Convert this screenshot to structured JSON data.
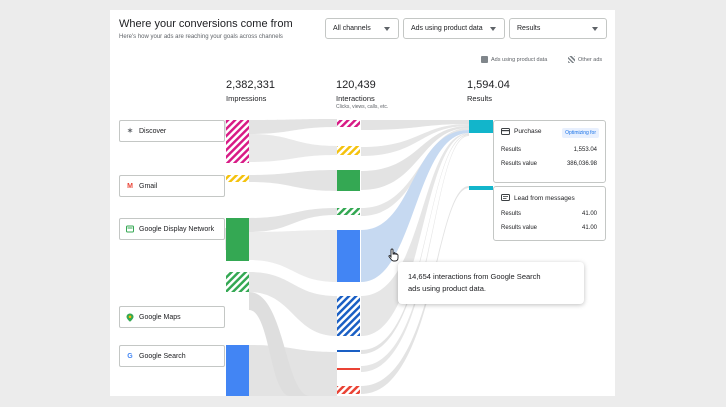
{
  "header": {
    "title": "Where your conversions come from",
    "subtitle": "Here's how your ads are reaching your goals across channels"
  },
  "filters": {
    "channels": "All channels",
    "ads": "Ads using product data",
    "metric": "Results"
  },
  "legend": {
    "solid": "Ads using product data",
    "striped": "Other ads"
  },
  "columns": {
    "impressions": {
      "value": "2,382,331",
      "label": "Impressions"
    },
    "interactions": {
      "value": "120,439",
      "label": "Interactions",
      "sub": "Clicks, views, calls, etc."
    },
    "results": {
      "value": "1,594.04",
      "label": "Results"
    }
  },
  "channels": [
    {
      "name": "Discover",
      "icon": "discover-icon",
      "color": "#d81b86"
    },
    {
      "name": "Gmail",
      "icon": "gmail-icon",
      "color": "#f4c20d"
    },
    {
      "name": "Google Display Network",
      "icon": "display-network-icon",
      "color": "#34a853"
    },
    {
      "name": "Google Maps",
      "icon": "maps-pin-icon",
      "color": "#34a853"
    },
    {
      "name": "Google Search",
      "icon": "google-g-icon",
      "color": "#4285f4"
    }
  ],
  "results": {
    "purchase": {
      "title": "Purchase",
      "badge": "Optimizing for",
      "results_label": "Results",
      "results_value": "1,553.04",
      "value_label": "Results value",
      "value_value": "386,036.98"
    },
    "lead": {
      "title": "Lead from messages",
      "results_label": "Results",
      "results_value": "41.00",
      "value_label": "Results value",
      "value_value": "41.00"
    }
  },
  "tooltip": {
    "line1": "14,654 interactions from Google Search",
    "line2": "ads using product data."
  },
  "colors": {
    "discover": "#d81b86",
    "gmail": "#f4c20d",
    "display": "#34a853",
    "search": "#4285f4",
    "result": "#12b5cb",
    "flow": "#e3e3e3",
    "flow_highlight": "#c6d9f1"
  }
}
